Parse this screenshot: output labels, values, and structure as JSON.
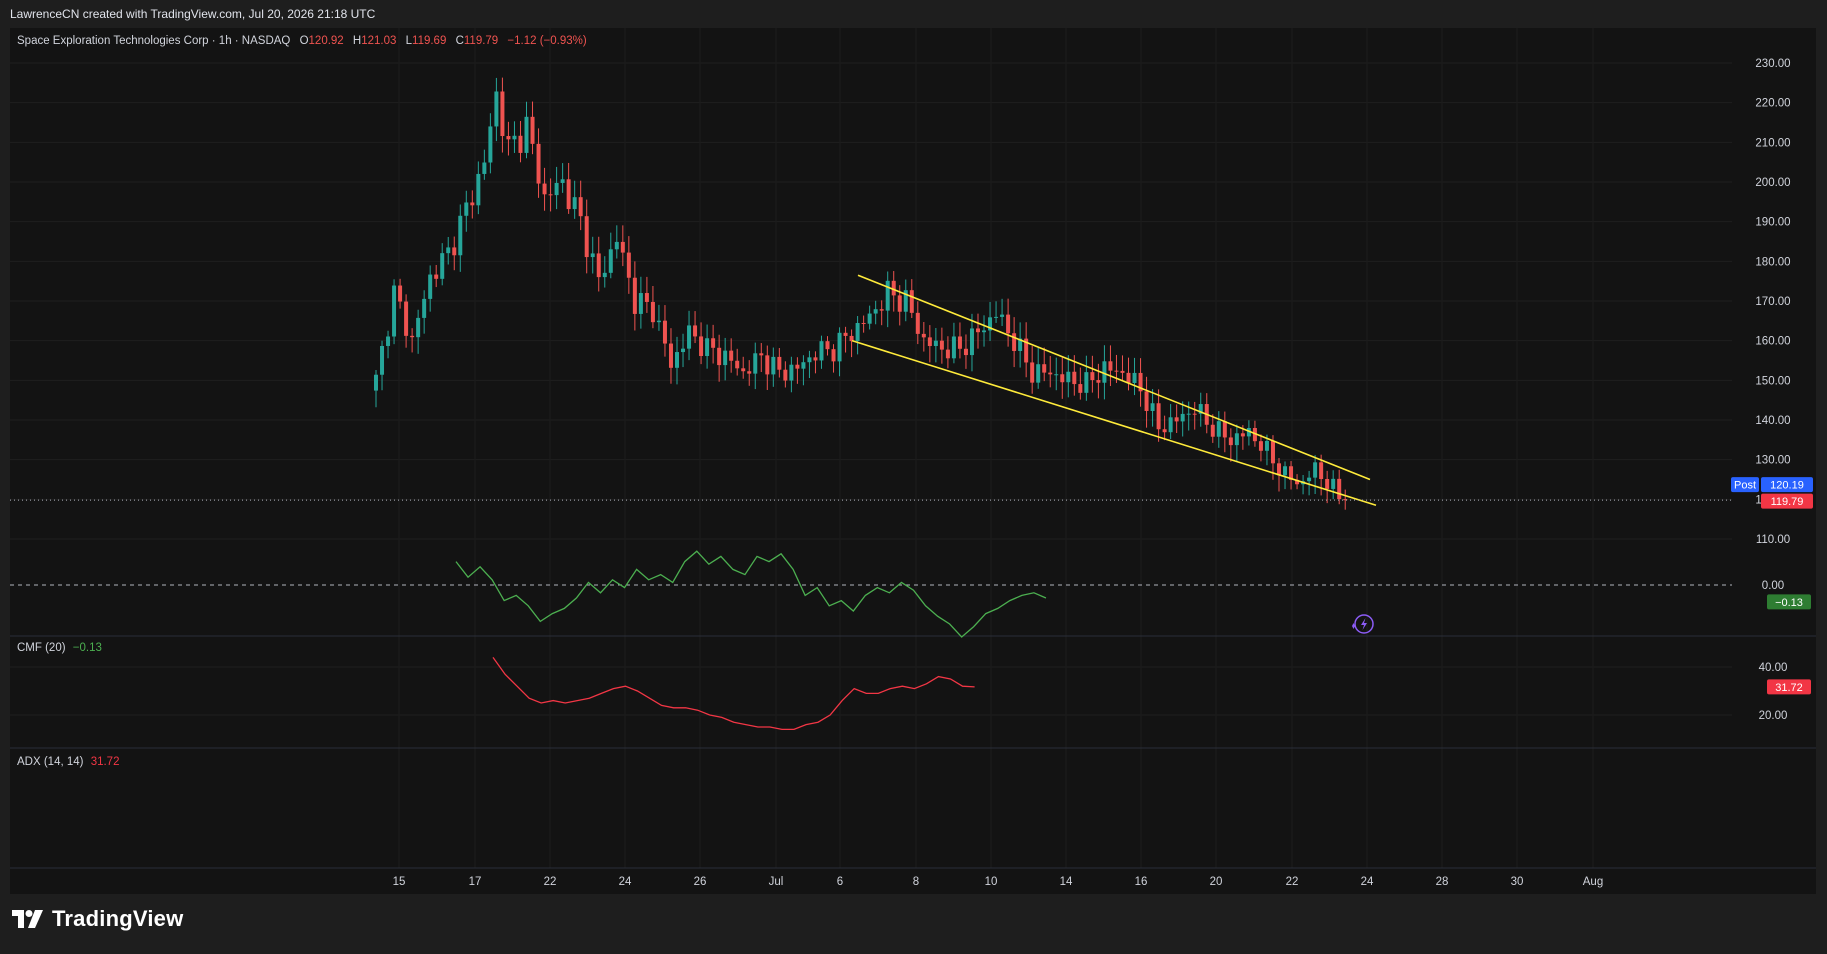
{
  "header": {
    "credit": "LawrenceCN created with TradingView.com, Jul 20, 2026 21:18 UTC"
  },
  "legend": {
    "symbol": "Space Exploration Technologies Corp · 1h · NASDAQ",
    "o_label": "O",
    "o_value": "120.92",
    "h_label": "H",
    "h_value": "121.03",
    "l_label": "L",
    "l_value": "119.69",
    "c_label": "C",
    "c_value": "119.79",
    "change": "−1.12 (−0.93%)"
  },
  "price_tags": {
    "post_label": "Post",
    "post_value": "120.19",
    "last_value": "119.79"
  },
  "cmf": {
    "label": "CMF (20)",
    "value": "−0.13",
    "zero_label": "0.00",
    "tag": "−0.13"
  },
  "adx": {
    "label": "ADX (14, 14)",
    "value": "31.72",
    "tag": "31.72"
  },
  "footer": {
    "brand": "TradingView"
  },
  "colors": {
    "up": "#26a69a",
    "down": "#ef5350",
    "trendline": "#ffeb3b",
    "cmf_line": "#4caf50",
    "adx_line": "#f23645",
    "post_tag": "#2962ff",
    "last_tag": "#f23645",
    "bg": "#131313"
  },
  "chart_data": [
    {
      "type": "candlestick",
      "title": "Space Exploration Technologies Corp · 1h · NASDAQ",
      "x_ticks": [
        "15",
        "17",
        "22",
        "24",
        "26",
        "Jul",
        "6",
        "8",
        "10",
        "14",
        "16",
        "20",
        "22",
        "24",
        "28",
        "30",
        "Aug"
      ],
      "y_ticks": [
        110,
        120,
        130,
        140,
        150,
        160,
        170,
        180,
        190,
        200,
        210,
        220,
        230
      ],
      "ylim": [
        106,
        234
      ],
      "last_price": 119.79,
      "anchors": [
        [
          0,
          150
        ],
        [
          3,
          172
        ],
        [
          6,
          160
        ],
        [
          9,
          176
        ],
        [
          12,
          182
        ],
        [
          15,
          193
        ],
        [
          18,
          205
        ],
        [
          20,
          222
        ],
        [
          22,
          208
        ],
        [
          25,
          214
        ],
        [
          28,
          196
        ],
        [
          31,
          200
        ],
        [
          34,
          190
        ],
        [
          37,
          175
        ],
        [
          40,
          186
        ],
        [
          43,
          170
        ],
        [
          46,
          168
        ],
        [
          49,
          154
        ],
        [
          52,
          162
        ],
        [
          55,
          158
        ],
        [
          58,
          156
        ],
        [
          61,
          152
        ],
        [
          64,
          156
        ],
        [
          67,
          152
        ],
        [
          70,
          153
        ],
        [
          73,
          157
        ],
        [
          76,
          158
        ],
        [
          79,
          162
        ],
        [
          82,
          166
        ],
        [
          85,
          172
        ],
        [
          88,
          170
        ],
        [
          91,
          160
        ],
        [
          94,
          158
        ],
        [
          97,
          158
        ],
        [
          100,
          162
        ],
        [
          103,
          167
        ],
        [
          106,
          160
        ],
        [
          109,
          152
        ],
        [
          112,
          152
        ],
        [
          115,
          150
        ],
        [
          118,
          149
        ],
        [
          121,
          153
        ],
        [
          124,
          152
        ],
        [
          127,
          148
        ],
        [
          130,
          138
        ],
        [
          133,
          140
        ],
        [
          136,
          143
        ],
        [
          139,
          138
        ],
        [
          142,
          135
        ],
        [
          145,
          137
        ],
        [
          148,
          132
        ],
        [
          151,
          126
        ],
        [
          154,
          124
        ],
        [
          156,
          128
        ],
        [
          158,
          124
        ],
        [
          160,
          121
        ],
        [
          161,
          119.79
        ]
      ],
      "trendlines": [
        {
          "name": "upper",
          "from": [
            45.5,
            176.5
          ],
          "to": [
            109,
            125
          ]
        },
        {
          "name": "lower",
          "from": [
            45,
            160
          ],
          "to": [
            110,
            118.5
          ]
        }
      ]
    },
    {
      "type": "line",
      "title": "CMF (20)",
      "y_ticks": [
        0
      ],
      "ylim": [
        -0.42,
        0.34
      ],
      "last_value": -0.13,
      "points": [
        [
          21,
          0.18
        ],
        [
          23,
          0.06
        ],
        [
          25,
          0.14
        ],
        [
          27,
          0.04
        ],
        [
          29,
          -0.12
        ],
        [
          31,
          -0.08
        ],
        [
          33,
          -0.16
        ],
        [
          35,
          -0.28
        ],
        [
          37,
          -0.22
        ],
        [
          39,
          -0.18
        ],
        [
          41,
          -0.1
        ],
        [
          43,
          0.02
        ],
        [
          45,
          -0.06
        ],
        [
          47,
          0.04
        ],
        [
          49,
          -0.02
        ],
        [
          51,
          0.12
        ],
        [
          53,
          0.04
        ],
        [
          55,
          0.08
        ],
        [
          57,
          0.02
        ],
        [
          59,
          0.18
        ],
        [
          61,
          0.26
        ],
        [
          63,
          0.16
        ],
        [
          65,
          0.22
        ],
        [
          67,
          0.12
        ],
        [
          69,
          0.08
        ],
        [
          71,
          0.22
        ],
        [
          73,
          0.18
        ],
        [
          75,
          0.24
        ],
        [
          77,
          0.12
        ],
        [
          79,
          -0.08
        ],
        [
          81,
          -0.02
        ],
        [
          83,
          -0.16
        ],
        [
          85,
          -0.12
        ],
        [
          87,
          -0.2
        ],
        [
          89,
          -0.08
        ],
        [
          91,
          -0.02
        ],
        [
          93,
          -0.06
        ],
        [
          95,
          0.02
        ],
        [
          97,
          -0.04
        ],
        [
          99,
          -0.16
        ],
        [
          101,
          -0.24
        ],
        [
          103,
          -0.3
        ],
        [
          105,
          -0.4
        ],
        [
          107,
          -0.32
        ],
        [
          109,
          -0.22
        ],
        [
          111,
          -0.18
        ],
        [
          113,
          -0.12
        ],
        [
          115,
          -0.08
        ],
        [
          117,
          -0.06
        ],
        [
          119,
          -0.1
        ]
      ]
    },
    {
      "type": "line",
      "title": "ADX (14, 14)",
      "y_ticks": [
        20,
        40
      ],
      "ylim": [
        10,
        47
      ],
      "last_value": 31.72,
      "points": [
        [
          31,
          44
        ],
        [
          33,
          37
        ],
        [
          35,
          32
        ],
        [
          37,
          27
        ],
        [
          39,
          25
        ],
        [
          41,
          26
        ],
        [
          43,
          25
        ],
        [
          45,
          26
        ],
        [
          47,
          27
        ],
        [
          49,
          29
        ],
        [
          51,
          31
        ],
        [
          53,
          32
        ],
        [
          55,
          30
        ],
        [
          57,
          27
        ],
        [
          59,
          24
        ],
        [
          61,
          23
        ],
        [
          63,
          23
        ],
        [
          65,
          22
        ],
        [
          67,
          20
        ],
        [
          69,
          19
        ],
        [
          71,
          17
        ],
        [
          73,
          16
        ],
        [
          75,
          15
        ],
        [
          77,
          15
        ],
        [
          79,
          14
        ],
        [
          81,
          14
        ],
        [
          83,
          16
        ],
        [
          85,
          17
        ],
        [
          87,
          20
        ],
        [
          89,
          26
        ],
        [
          91,
          31
        ],
        [
          93,
          29
        ],
        [
          95,
          29
        ],
        [
          97,
          31
        ],
        [
          99,
          32
        ],
        [
          101,
          31
        ],
        [
          103,
          33
        ],
        [
          105,
          36
        ],
        [
          107,
          35
        ],
        [
          109,
          32
        ],
        [
          111,
          31.72
        ]
      ]
    }
  ]
}
